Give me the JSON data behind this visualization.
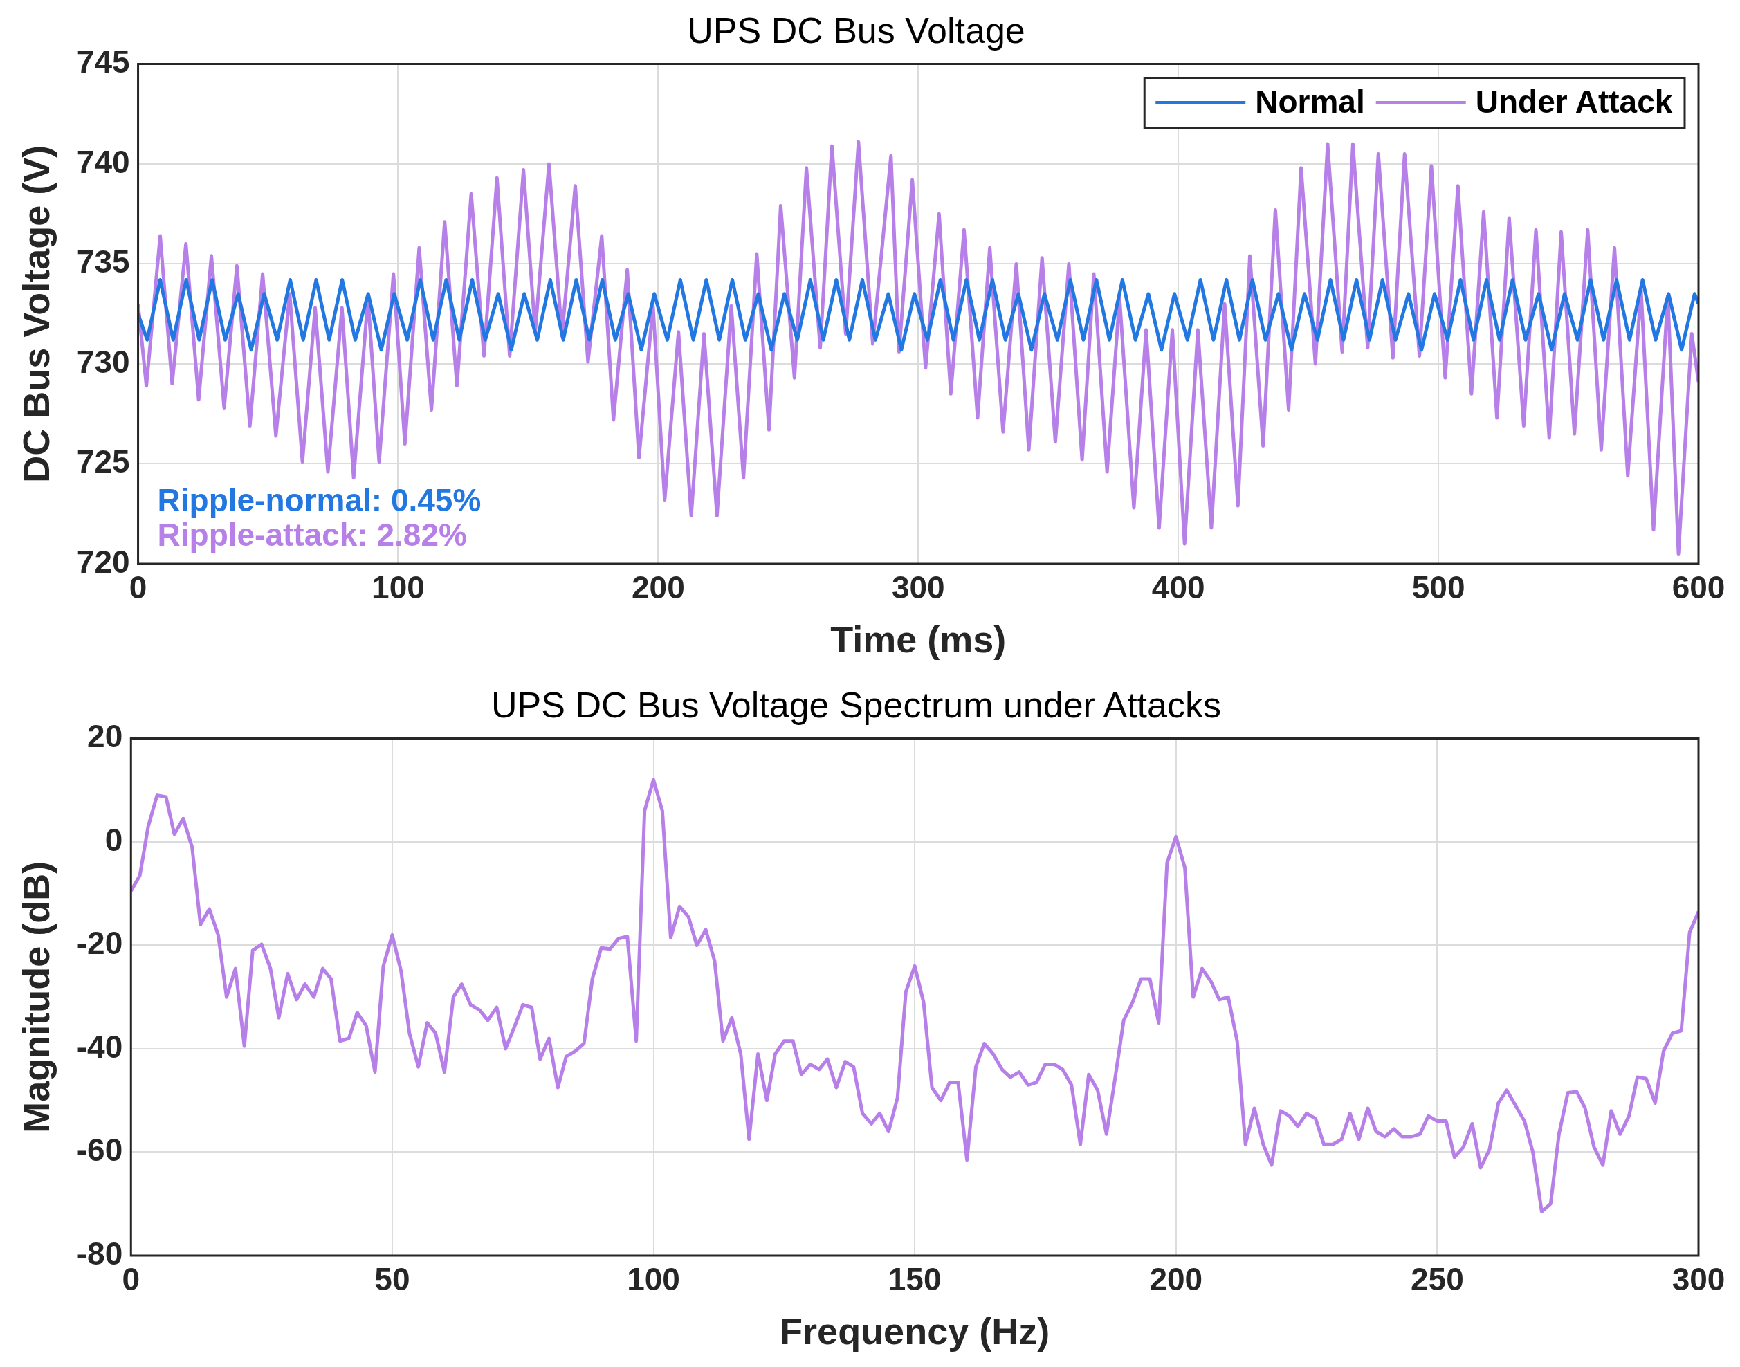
{
  "chart_data": [
    {
      "type": "line",
      "title": "UPS DC Bus Voltage",
      "xlabel": "Time (ms)",
      "ylabel": "DC Bus Voltage (V)",
      "xlim": [
        0,
        600
      ],
      "xticks": [
        0,
        100,
        200,
        300,
        400,
        500,
        600
      ],
      "ylim": [
        720,
        745
      ],
      "yticks": [
        720,
        725,
        730,
        735,
        740,
        745
      ],
      "grid": true,
      "legend": "top right",
      "annotations": [
        "Ripple-normal: 0.45%",
        "Ripple-attack: 2.82%"
      ],
      "series": [
        {
          "name": "Normal",
          "color": "#2278e0",
          "x": [
            0,
            3.5,
            8.5,
            13.5,
            18.5,
            23.5,
            28.5,
            33.5,
            38.5,
            43.5,
            48.5,
            53.5,
            58.5,
            63.5,
            68.5,
            73.5,
            78.5,
            83.5,
            88.5,
            93.5,
            98.5,
            103.5,
            108.5,
            113.5,
            118.5,
            123.5,
            128.5,
            133.5,
            138.5,
            143.5,
            148.5,
            153.5,
            158.5,
            163.5,
            168.5,
            173.5,
            178.5,
            183.5,
            188.5,
            193.5,
            198.5,
            203.5,
            208.5,
            213.5,
            218.5,
            223.5,
            228.5,
            233.5,
            238.5,
            243.5,
            248.5,
            253.5,
            258.5,
            263.5,
            268.5,
            273.5,
            278.5,
            283.5,
            288.5,
            293.5,
            298.5,
            303.5,
            308.5,
            313.5,
            318.5,
            323.5,
            328.5,
            333.5,
            338.5,
            343.5,
            348.5,
            353.5,
            358.5,
            363.5,
            368.5,
            373.5,
            378.5,
            383.5,
            388.5,
            393.5,
            398.5,
            403.5,
            408.5,
            413.5,
            418.5,
            423.5,
            428.5,
            433.5,
            438.5,
            443.5,
            448.5,
            453.5,
            458.5,
            463.5,
            468.5,
            473.5,
            478.5,
            483.5,
            488.5,
            493.5,
            498.5,
            503.5,
            508.5,
            513.5,
            518.5,
            523.5,
            528.5,
            533.5,
            538.5,
            543.5,
            548.5,
            553.5,
            558.5,
            563.5,
            568.5,
            573.5,
            578.5,
            583.5,
            588.5,
            593.5,
            598.5,
            600
          ],
          "values": [
            732.5,
            731.2,
            734.2,
            731.2,
            734.2,
            731.2,
            734.2,
            731.2,
            733.5,
            730.7,
            733.5,
            731.2,
            734.2,
            731.2,
            734.2,
            731.2,
            734.2,
            731.2,
            733.5,
            730.7,
            733.5,
            731.2,
            734.2,
            731.2,
            734.2,
            731.2,
            734.2,
            731.2,
            733.5,
            730.7,
            733.5,
            731.2,
            734.2,
            731.2,
            734.2,
            731.2,
            734.2,
            731.2,
            733.5,
            730.7,
            733.5,
            731.2,
            734.2,
            731.2,
            734.2,
            731.2,
            734.2,
            731.2,
            733.5,
            730.7,
            733.5,
            731.2,
            734.2,
            731.2,
            734.2,
            731.2,
            734.2,
            731.2,
            733.5,
            730.7,
            733.5,
            731.2,
            734.2,
            731.2,
            734.2,
            731.2,
            734.2,
            731.2,
            733.5,
            730.7,
            733.5,
            731.2,
            734.2,
            731.2,
            734.2,
            731.2,
            734.2,
            731.2,
            733.5,
            730.7,
            733.5,
            731.2,
            734.2,
            731.2,
            734.2,
            731.2,
            734.2,
            731.2,
            733.5,
            730.7,
            733.5,
            731.2,
            734.2,
            731.2,
            734.2,
            731.2,
            734.2,
            731.2,
            733.5,
            730.7,
            733.5,
            731.2,
            734.2,
            731.2,
            734.2,
            731.2,
            734.2,
            731.2,
            733.5,
            730.7,
            733.5,
            731.2,
            734.2,
            731.2,
            734.2,
            731.2,
            734.2,
            731.2,
            733.5,
            730.7,
            733.5,
            733.0
          ]
        },
        {
          "name": "Under Attack",
          "color": "#b77fe8",
          "x": [
            0,
            3.2,
            8.5,
            13.1,
            18.4,
            23.3,
            28.2,
            33.1,
            38.0,
            43.0,
            47.9,
            53.0,
            58.3,
            63.2,
            68.1,
            73.0,
            78.4,
            82.9,
            88.4,
            92.7,
            98.2,
            102.6,
            108.1,
            112.8,
            117.9,
            122.6,
            128.1,
            133.0,
            138.0,
            142.9,
            148.2,
            152.7,
            158.0,
            163.0,
            168.1,
            173.0,
            178.3,
            182.8,
            188.1,
            192.6,
            198.0,
            202.5,
            207.8,
            212.7,
            217.6,
            222.6,
            228.1,
            232.8,
            237.9,
            242.6,
            247.1,
            252.4,
            257.0,
            262.3,
            266.8,
            272.1,
            277.0,
            282.5,
            289.5,
            292.6,
            297.7,
            302.8,
            308.0,
            312.5,
            317.6,
            322.8,
            327.5,
            332.6,
            337.7,
            342.5,
            347.6,
            352.7,
            357.9,
            363.0,
            367.5,
            372.6,
            377.4,
            382.9,
            387.6,
            392.6,
            397.7,
            402.4,
            407.5,
            412.7,
            417.8,
            422.9,
            427.5,
            432.6,
            437.3,
            442.4,
            447.2,
            452.7,
            457.4,
            463.0,
            467.1,
            472.8,
            476.9,
            482.5,
            487.0,
            492.7,
            497.3,
            502.6,
            507.5,
            512.7,
            517.4,
            522.5,
            527.2,
            532.8,
            537.5,
            542.6,
            547.2,
            552.3,
            557.4,
            562.6,
            567.7,
            572.8,
            577.9,
            582.7,
            588.2,
            592.3,
            597.4,
            600
          ],
          "values": [
            733.0,
            728.9,
            736.4,
            729.0,
            736.0,
            728.2,
            735.4,
            727.8,
            734.9,
            726.9,
            734.5,
            726.4,
            733.5,
            725.1,
            732.8,
            724.6,
            732.8,
            724.3,
            733.3,
            725.1,
            734.5,
            726.0,
            735.8,
            727.7,
            737.1,
            728.9,
            738.5,
            730.4,
            739.3,
            730.4,
            739.7,
            731.6,
            740.0,
            731.4,
            738.9,
            730.1,
            736.4,
            727.2,
            734.7,
            725.3,
            732.9,
            723.2,
            731.6,
            722.4,
            731.5,
            722.4,
            732.9,
            724.3,
            735.5,
            726.7,
            737.9,
            729.3,
            739.8,
            730.8,
            740.9,
            731.5,
            741.1,
            731.0,
            740.4,
            730.6,
            739.2,
            729.8,
            737.5,
            728.5,
            736.7,
            727.3,
            735.8,
            726.6,
            735.0,
            725.7,
            735.3,
            726.1,
            735.0,
            725.2,
            734.5,
            724.6,
            733.3,
            722.8,
            731.7,
            721.8,
            731.7,
            721.0,
            731.7,
            721.8,
            733.0,
            722.9,
            735.4,
            725.9,
            737.7,
            727.7,
            739.8,
            730.0,
            741.0,
            730.6,
            741.0,
            730.8,
            740.5,
            730.3,
            740.5,
            730.4,
            739.9,
            729.3,
            738.9,
            728.5,
            737.6,
            727.3,
            737.3,
            726.9,
            736.7,
            726.3,
            736.6,
            726.5,
            736.7,
            725.7,
            735.8,
            724.4,
            733.7,
            721.7,
            733.4,
            720.5,
            731.5,
            729.1
          ]
        }
      ]
    },
    {
      "type": "line",
      "title": "UPS DC Bus Voltage Spectrum under Attacks",
      "xlabel": "Frequency (Hz)",
      "ylabel": "Magnitude (dB)",
      "xlim": [
        0,
        300
      ],
      "xticks": [
        0,
        50,
        100,
        150,
        200,
        250,
        300
      ],
      "ylim": [
        -80,
        20
      ],
      "yticks": [
        -80,
        -60,
        -40,
        -20,
        0,
        20
      ],
      "grid": true,
      "series": [
        {
          "color": "#b77fe8",
          "x": [
            0,
            1.7,
            3.3,
            5,
            6.7,
            8.3,
            10,
            11.7,
            13.3,
            15,
            16.7,
            18.3,
            20,
            21.7,
            23.3,
            25,
            26.7,
            28.3,
            30,
            31.7,
            33.3,
            35,
            36.7,
            38.3,
            40,
            41.7,
            43.3,
            45,
            46.7,
            48.3,
            50,
            51.7,
            53.3,
            55,
            56.7,
            58.3,
            60,
            61.7,
            63.3,
            65,
            66.7,
            68.3,
            70,
            71.7,
            73.3,
            75,
            76.7,
            78.3,
            80,
            81.7,
            83.3,
            85,
            86.7,
            88.3,
            90,
            91.7,
            93.3,
            95,
            96.7,
            98.3,
            100,
            101.7,
            103.3,
            105,
            106.7,
            108.3,
            110,
            111.7,
            113.3,
            115,
            116.7,
            118.3,
            120,
            121.7,
            123.3,
            125,
            126.7,
            128.3,
            130,
            131.7,
            133.3,
            135,
            136.7,
            138.3,
            140,
            141.7,
            143.3,
            145,
            146.7,
            148.3,
            150,
            151.7,
            153.3,
            155,
            156.7,
            158.3,
            160,
            161.7,
            163.3,
            165,
            166.7,
            168.3,
            170,
            171.7,
            173.3,
            175,
            176.7,
            178.3,
            180,
            181.7,
            183.3,
            185,
            186.7,
            188.3,
            190,
            191.7,
            193.3,
            195,
            196.7,
            198.3,
            200,
            201.7,
            203.3,
            205,
            206.7,
            208.3,
            210,
            211.7,
            213.3,
            215,
            216.7,
            218.3,
            220,
            221.7,
            223.3,
            225,
            226.7,
            228.3,
            230,
            231.7,
            233.3,
            235,
            236.7,
            238.3,
            240,
            241.7,
            243.3,
            245,
            246.7,
            248.3,
            250,
            251.7,
            253.3,
            255,
            256.7,
            258.3,
            260,
            261.7,
            263.3,
            265,
            266.7,
            268.3,
            270,
            271.7,
            273.3,
            275,
            276.7,
            278.3,
            280,
            281.7,
            283.3,
            285,
            286.7,
            288.3,
            290,
            291.7,
            293.3,
            295,
            296.7,
            298.3,
            300
          ],
          "values": [
            -9.5,
            -6.5,
            3,
            9,
            8.7,
            1.5,
            4.5,
            -1,
            -16,
            -13,
            -18,
            -30,
            -24.5,
            -39.5,
            -21,
            -19.8,
            -24.5,
            -34,
            -25.5,
            -30.5,
            -27.5,
            -30,
            -24.5,
            -26.5,
            -38.5,
            -38,
            -33,
            -35.5,
            -44.5,
            -24,
            -18,
            -25,
            -37,
            -43.5,
            -35,
            -37,
            -44.5,
            -30,
            -27.5,
            -31.5,
            -32.5,
            -34.5,
            -32,
            -40,
            -36,
            -31.5,
            -32,
            -42,
            -38,
            -47.5,
            -41.5,
            -40.5,
            -39,
            -26.5,
            -20.5,
            -20.7,
            -18.7,
            -18.3,
            -38.5,
            6,
            12,
            6,
            -18.5,
            -12.5,
            -14.5,
            -20,
            -17,
            -23,
            -38.5,
            -34,
            -41,
            -57.5,
            -41,
            -50,
            -41,
            -38.5,
            -38.5,
            -45,
            -43,
            -44,
            -42,
            -47.5,
            -42.5,
            -43.5,
            -52.5,
            -54.5,
            -52.5,
            -56,
            -49.5,
            -29,
            -24,
            -31,
            -47.5,
            -50,
            -46.5,
            -46.5,
            -61.5,
            -43.5,
            -39,
            -41,
            -44,
            -45.5,
            -44.5,
            -47,
            -46.5,
            -43,
            -43,
            -44,
            -47,
            -58.5,
            -45,
            -48,
            -56.5,
            -46,
            -34.5,
            -31,
            -26.5,
            -26.5,
            -35,
            -4,
            1,
            -5,
            -30,
            -24.5,
            -27,
            -30.5,
            -30,
            -38.5,
            -58.5,
            -51.5,
            -58.5,
            -62.5,
            -52,
            -53,
            -55,
            -52.5,
            -53.5,
            -58.5,
            -58.5,
            -57.5,
            -52.5,
            -57.5,
            -51.5,
            -56,
            -57,
            -55.5,
            -57,
            -57,
            -56.5,
            -53,
            -54,
            -54,
            -61,
            -59,
            -54.5,
            -63,
            -59.5,
            -50.5,
            -48,
            -51,
            -54,
            -60,
            -71.5,
            -70,
            -56.5,
            -48.5,
            -48.3,
            -51.5,
            -59,
            -62.5,
            -52,
            -56.5,
            -53,
            -45.5,
            -45.8,
            -50.5,
            -40.5,
            -37,
            -36.5,
            -17.5,
            -13.5
          ]
        }
      ]
    }
  ]
}
